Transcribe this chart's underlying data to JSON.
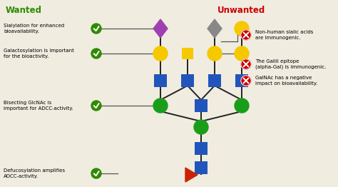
{
  "title_wanted": "Wanted",
  "title_unwanted": "Unwanted",
  "title_wanted_color": "#2e8b00",
  "title_unwanted_color": "#cc0000",
  "bg_color": "#f0ece0",
  "wanted_labels": [
    "Sialylation for enhanced\nbioavailability.",
    "Galactosylation is important\nfor the bioactivity.",
    "Bisecting GlcNAc is\nimportant for ADCC-activity.",
    "Defucosylation amplifies\nADCC-activity."
  ],
  "unwanted_labels": [
    "Non-human sialic acids\nare immunogenic.",
    "The Galili epitope\n(alpha-Gal) is immunogenic.",
    "GalNAc has a negative\nimpact on bioavailability."
  ],
  "node_colors": {
    "purple_diamond": "#a040b0",
    "gray_diamond": "#888888",
    "yellow": "#f5c800",
    "blue": "#2255bb",
    "green": "#1a9e1a",
    "red": "#cc2200"
  }
}
